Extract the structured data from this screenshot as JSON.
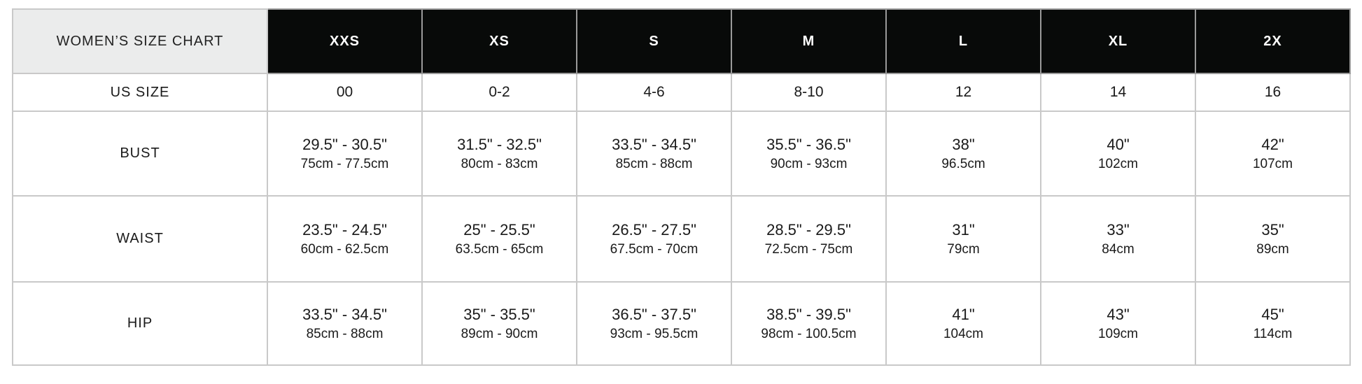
{
  "title": "WOMEN'S SIZE CHART",
  "sizes": [
    "XXS",
    "XS",
    "S",
    "M",
    "L",
    "XL",
    "2X"
  ],
  "rows": {
    "us": {
      "label": "US SIZE",
      "values": [
        "00",
        "0-2",
        "4-6",
        "8-10",
        "12",
        "14",
        "16"
      ]
    },
    "bust": {
      "label": "BUST",
      "values": [
        {
          "in": "29.5\" - 30.5\"",
          "cm": "75cm - 77.5cm"
        },
        {
          "in": "31.5\" - 32.5\"",
          "cm": "80cm - 83cm"
        },
        {
          "in": "33.5\" - 34.5\"",
          "cm": "85cm - 88cm"
        },
        {
          "in": "35.5\" - 36.5\"",
          "cm": "90cm - 93cm"
        },
        {
          "in": "38\"",
          "cm": "96.5cm"
        },
        {
          "in": "40\"",
          "cm": "102cm"
        },
        {
          "in": "42\"",
          "cm": "107cm"
        }
      ]
    },
    "waist": {
      "label": "WAIST",
      "values": [
        {
          "in": "23.5\" - 24.5\"",
          "cm": "60cm - 62.5cm"
        },
        {
          "in": "25\" - 25.5\"",
          "cm": "63.5cm - 65cm"
        },
        {
          "in": "26.5\" - 27.5\"",
          "cm": "67.5cm - 70cm"
        },
        {
          "in": "28.5\" - 29.5\"",
          "cm": "72.5cm - 75cm"
        },
        {
          "in": "31\"",
          "cm": "79cm"
        },
        {
          "in": "33\"",
          "cm": "84cm"
        },
        {
          "in": "35\"",
          "cm": "89cm"
        }
      ]
    },
    "hip": {
      "label": "HIP",
      "values": [
        {
          "in": "33.5\" - 34.5\"",
          "cm": "85cm - 88cm"
        },
        {
          "in": "35\" - 35.5\"",
          "cm": "89cm - 90cm"
        },
        {
          "in": "36.5\" - 37.5\"",
          "cm": "93cm - 95.5cm"
        },
        {
          "in": "38.5\" - 39.5\"",
          "cm": "98cm - 100.5cm"
        },
        {
          "in": "41\"",
          "cm": "104cm"
        },
        {
          "in": "43\"",
          "cm": "109cm"
        },
        {
          "in": "45\"",
          "cm": "114cm"
        }
      ]
    }
  },
  "colors": {
    "header_bg": "#080a09",
    "corner_bg": "#ebecec",
    "border": "#c9c9c9"
  }
}
